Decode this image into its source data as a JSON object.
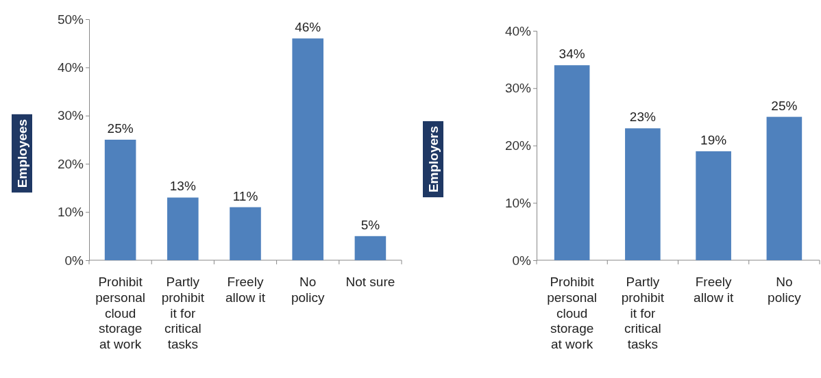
{
  "chart_data": [
    {
      "type": "bar",
      "ylabel": "Employees",
      "categories": [
        "Prohibit personal cloud storage at work",
        "Partly prohibit it for critical tasks",
        "Freely allow it",
        "No policy",
        "Not sure"
      ],
      "values": [
        25,
        13,
        11,
        46,
        5
      ],
      "value_labels": [
        "25%",
        "13%",
        "11%",
        "46%",
        "5%"
      ],
      "color": "#4f81bd",
      "ylim": [
        0,
        50
      ],
      "yticks": [
        {
          "value": 0,
          "label": "0%"
        },
        {
          "value": 10,
          "label": "10%"
        },
        {
          "value": 20,
          "label": "20%"
        },
        {
          "value": 30,
          "label": "30%"
        },
        {
          "value": 40,
          "label": "40%"
        },
        {
          "value": 50,
          "label": "50%"
        }
      ]
    },
    {
      "type": "bar",
      "ylabel": "Employers",
      "categories": [
        "Prohibit personal cloud storage at work",
        "Partly prohibit it for critical tasks",
        "Freely allow it",
        "No policy"
      ],
      "values": [
        34,
        23,
        19,
        25
      ],
      "value_labels": [
        "34%",
        "23%",
        "19%",
        "25%"
      ],
      "color": "#4f81bd",
      "ylim": [
        0,
        40
      ],
      "yticks": [
        {
          "value": 0,
          "label": "0%"
        },
        {
          "value": 10,
          "label": "10%"
        },
        {
          "value": 20,
          "label": "20%"
        },
        {
          "value": 30,
          "label": "30%"
        },
        {
          "value": 40,
          "label": "40%"
        }
      ]
    }
  ]
}
